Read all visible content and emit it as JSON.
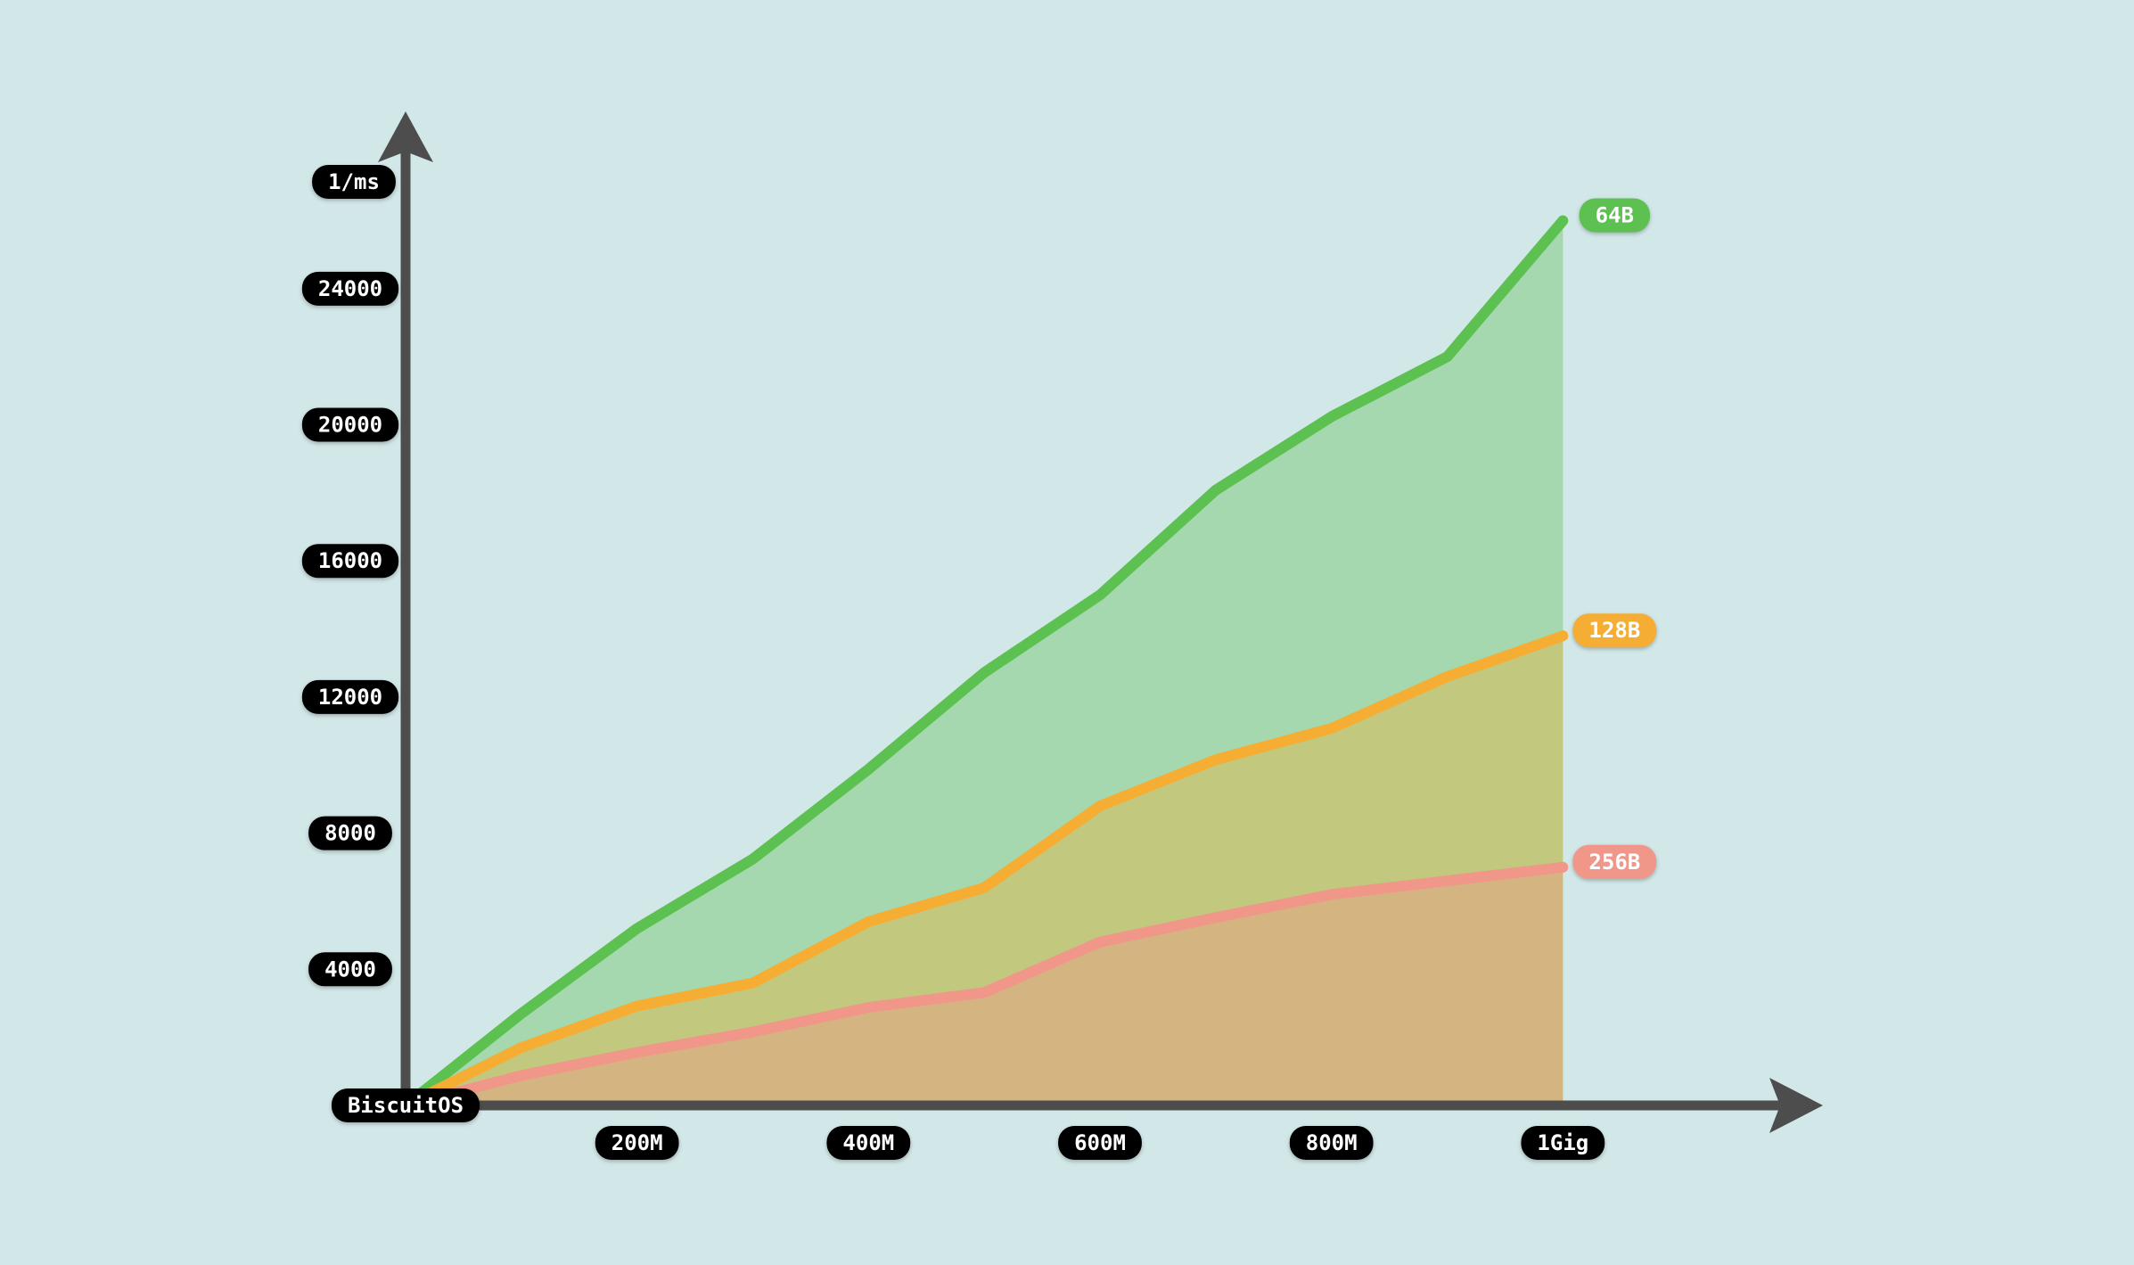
{
  "chart_data": {
    "type": "area",
    "y_label": "1/ms",
    "origin_label": "BiscuitOS",
    "x": [
      0,
      100,
      200,
      300,
      400,
      500,
      600,
      700,
      800,
      900,
      1000
    ],
    "series": [
      {
        "name": "64B",
        "color": "#5cc151",
        "values": [
          0,
          2700,
          5200,
          7240,
          9880,
          12720,
          15000,
          18080,
          20240,
          22000,
          26000
        ]
      },
      {
        "name": "128B",
        "color": "#f5ae33",
        "values": [
          0,
          1700,
          2920,
          3600,
          5400,
          6400,
          8800,
          10160,
          11080,
          12600,
          13800
        ]
      },
      {
        "name": "256B",
        "color": "#f0978a",
        "values": [
          0,
          880,
          1560,
          2160,
          2880,
          3320,
          4800,
          5520,
          6200,
          6600,
          7000
        ]
      }
    ],
    "xlim": [
      0,
      1200
    ],
    "ylim": [
      0,
      29000
    ],
    "xticks": [
      {
        "value": 200,
        "label": "200M"
      },
      {
        "value": 400,
        "label": "400M"
      },
      {
        "value": 600,
        "label": "600M"
      },
      {
        "value": 800,
        "label": "800M"
      },
      {
        "value": 1000,
        "label": "1Gig"
      }
    ],
    "yticks": [
      4000,
      8000,
      12000,
      16000,
      20000,
      24000
    ]
  }
}
